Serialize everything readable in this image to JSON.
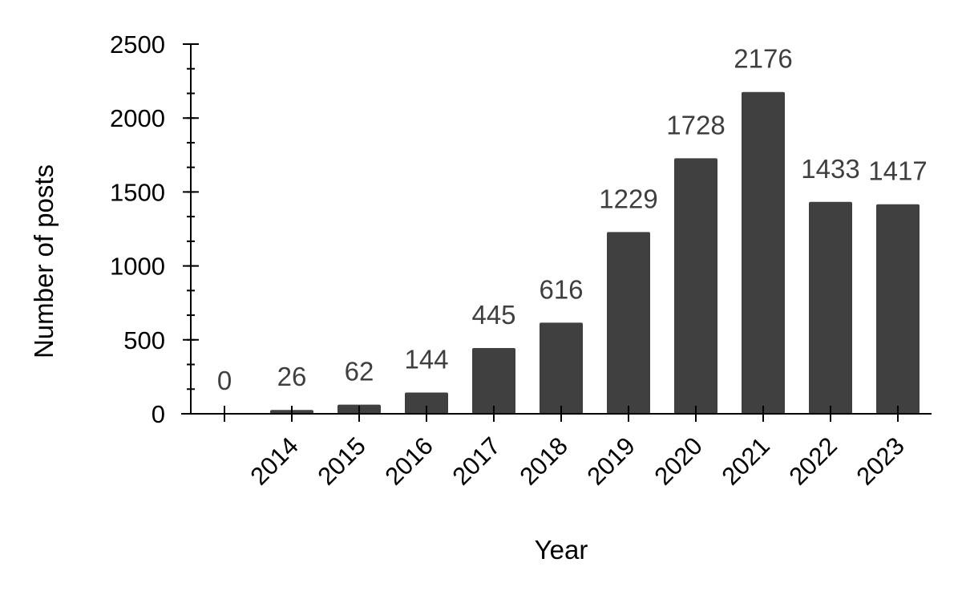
{
  "chart_data": {
    "type": "bar",
    "categories": [
      "",
      "2014",
      "2015",
      "2016",
      "2017",
      "2018",
      "2019",
      "2020",
      "2021",
      "2022",
      "2023"
    ],
    "values": [
      0,
      26,
      62,
      144,
      445,
      616,
      1229,
      1728,
      2176,
      1433,
      1417
    ],
    "data_labels": [
      "0",
      "26",
      "62",
      "144",
      "445",
      "616",
      "1229",
      "1728",
      "2176",
      "1433",
      "1417"
    ],
    "xlabel": "Year",
    "ylabel": "Number of posts",
    "ylim": [
      0,
      2500
    ],
    "yticks": [
      0,
      500,
      1000,
      1500,
      2000,
      2500
    ],
    "ytick_labels": [
      "0",
      "500",
      "1000",
      "1500",
      "2000",
      "2500"
    ],
    "minor_tick_step": 166.67,
    "grid": false,
    "legend": "none",
    "bar_color": "#404040",
    "label_color": "#3f3f3f"
  }
}
